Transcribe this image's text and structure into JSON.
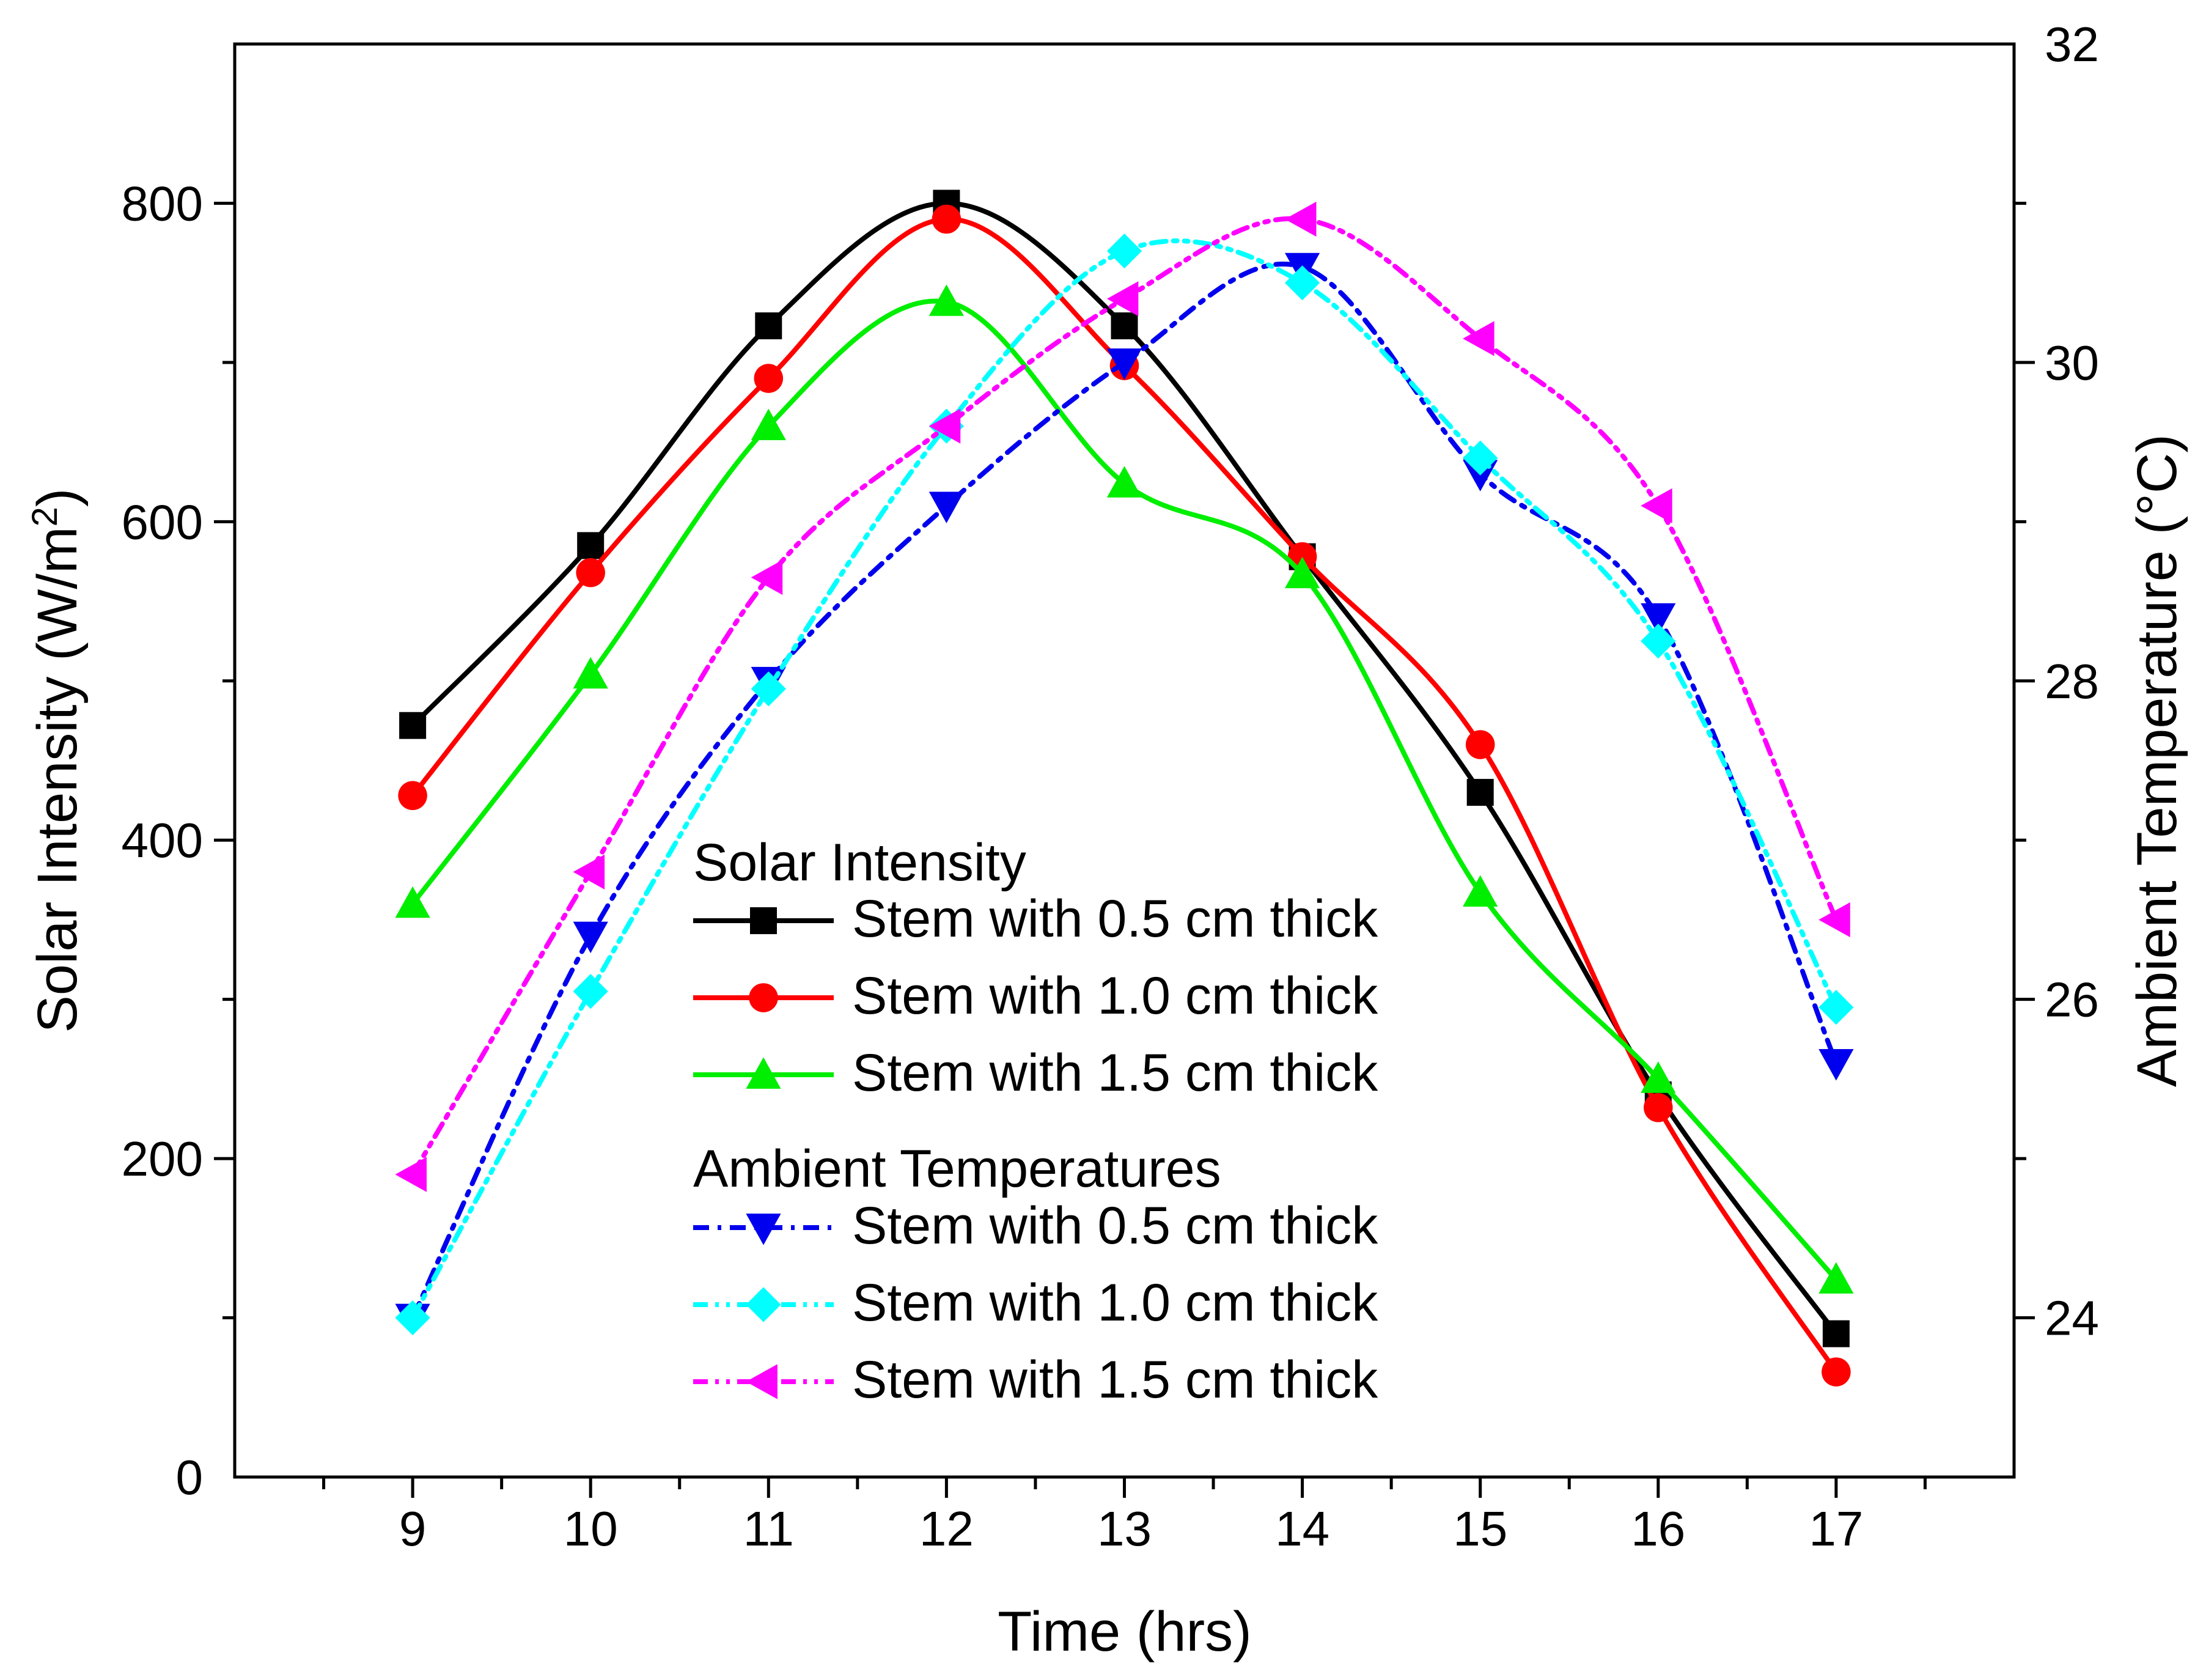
{
  "chart_data": {
    "type": "line",
    "x": [
      9,
      10,
      11,
      12,
      13,
      14,
      15,
      16,
      17
    ],
    "xlabel": "Time (hrs)",
    "ylabel": "Solar Intensity (W/m²)",
    "ylabel_main": "Solar Intensity (W/m",
    "ylabel_sup": "2",
    "ylabel_end": ")",
    "ylabel_right": "Ambient Temperature (°C)",
    "xlim": [
      8,
      18
    ],
    "ylim": [
      0,
      900
    ],
    "ylim_right": [
      23,
      32
    ],
    "xticks": [
      9,
      10,
      11,
      12,
      13,
      14,
      15,
      16,
      17
    ],
    "yticks": [
      0,
      200,
      400,
      600,
      800
    ],
    "yticks_right": [
      24,
      26,
      28,
      30,
      32
    ],
    "grid": false,
    "legend_position": "lower-center",
    "legend_groups": [
      {
        "title": "Solar Intensity",
        "series_indices": [
          0,
          1,
          2
        ]
      },
      {
        "title": "Ambient Temperatures",
        "series_indices": [
          3,
          4,
          5
        ]
      }
    ],
    "series": [
      {
        "name": "Stem with 0.5 cm thick",
        "axis": "left",
        "color": "#000000",
        "marker": "square",
        "dash": "solid",
        "values": [
          472,
          585,
          723,
          800,
          723,
          578,
          430,
          240,
          90
        ]
      },
      {
        "name": "Stem with 1.0 cm thick",
        "axis": "left",
        "color": "#ff0000",
        "marker": "circle",
        "dash": "solid",
        "values": [
          428,
          568,
          690,
          790,
          698,
          578,
          460,
          232,
          66
        ]
      },
      {
        "name": "Stem with 1.5 cm thick",
        "axis": "left",
        "color": "#00ee00",
        "marker": "triangle-up",
        "dash": "solid",
        "values": [
          360,
          504,
          660,
          738,
          624,
          567,
          367,
          250,
          124
        ]
      },
      {
        "name": "Stem with 0.5 cm thick",
        "axis": "right",
        "color": "#0000ee",
        "marker": "triangle-down",
        "dash": "dashdot",
        "values": [
          24.0,
          26.4,
          28.0,
          29.1,
          30.0,
          30.6,
          29.3,
          28.4,
          25.6
        ]
      },
      {
        "name": "Stem with 1.0 cm thick",
        "axis": "right",
        "color": "#00ffff",
        "marker": "diamond",
        "dash": "dashdotdot",
        "values": [
          24.0,
          26.05,
          27.95,
          29.6,
          30.7,
          30.5,
          29.4,
          28.25,
          25.95
        ]
      },
      {
        "name": "Stem with 1.5 cm thick",
        "axis": "right",
        "color": "#ff00ff",
        "marker": "triangle-left",
        "dash": "dashdotdot",
        "values": [
          24.9,
          26.8,
          28.65,
          29.6,
          30.4,
          30.9,
          30.15,
          29.1,
          26.5
        ]
      }
    ]
  }
}
